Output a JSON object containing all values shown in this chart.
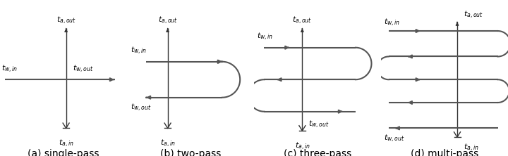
{
  "bg_color": "#ffffff",
  "line_color": "#555555",
  "axis_color": "#333333",
  "text_color": "#000000",
  "tube_lw": 1.5,
  "axis_lw": 1.0,
  "water_lw": 1.5,
  "arrow_mut": 7,
  "axis_arrow_mut": 6,
  "labels": {
    "ta_out": "$t_{a,out}$",
    "ta_in": "$t_{a,in}$",
    "tw_in": "$t_{w,in}$",
    "tw_out": "$t_{w,out}$"
  },
  "captions": [
    "(a) single-pass",
    "(b) two-pass",
    "(c) three-pass",
    "(d) multi-pass"
  ],
  "font_size_label": 8,
  "font_size_caption": 10,
  "label_weight": "bold"
}
